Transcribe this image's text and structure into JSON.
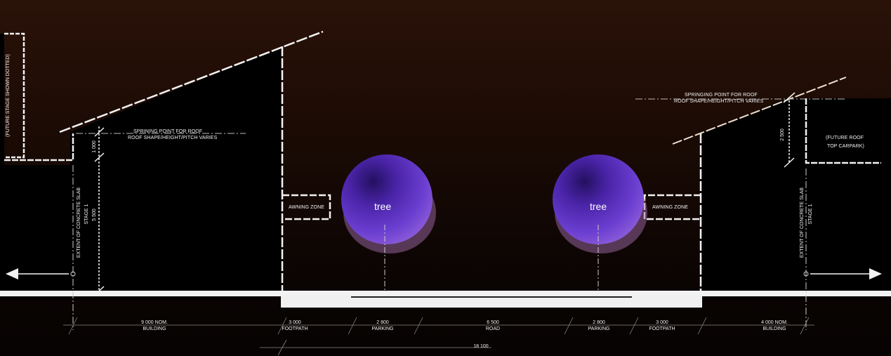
{
  "tree_label": "tree",
  "notes": {
    "future_stage": "(FUTURE STAGE SHOWN DOTTED)",
    "spring_left_1": "SPRINING POINT FOR ROOF",
    "spring_left_2": "ROOF SHAPE/HEIGHT/PITCH VARIES",
    "spring_right_1": "SPRINGING POINT FOR ROOF",
    "spring_right_2": "ROOF SHAPE/HEIGHT/PITCH VARIES",
    "future_roof_1": "(FUTURE ROOF",
    "future_roof_2": "TOP CARPARK)",
    "awning_left": "AWNING ZONE",
    "awning_right": "AWNING ZONE",
    "slab_left_1": "EXTENT OF CONCRETE SLAB",
    "slab_left_2": "STAGE 1",
    "slab_right_1": "EXTENT OF CONCRETE SLAB",
    "slab_right_2": "STAGE 1",
    "dim_1000": "1 000",
    "dim_5500": "5 500",
    "dim_2500": "2 500"
  },
  "dimensions": [
    {
      "value": "9 000 NOM.",
      "label": "BUILDING"
    },
    {
      "value": "3 000",
      "label": "FOOTPATH"
    },
    {
      "value": "2 800",
      "label": "PARKING"
    },
    {
      "value": "6 500",
      "label": "ROAD"
    },
    {
      "value": "2 800",
      "label": "PARKING"
    },
    {
      "value": "3 000",
      "label": "FOOTPATH"
    },
    {
      "value": "4 000 NOM.",
      "label": "BUILDING"
    }
  ],
  "overall_dimension": "18 100",
  "colors": {
    "tree_fill": "#5a2fb8",
    "line": "#ffffff",
    "background_top": "#2a1208"
  }
}
